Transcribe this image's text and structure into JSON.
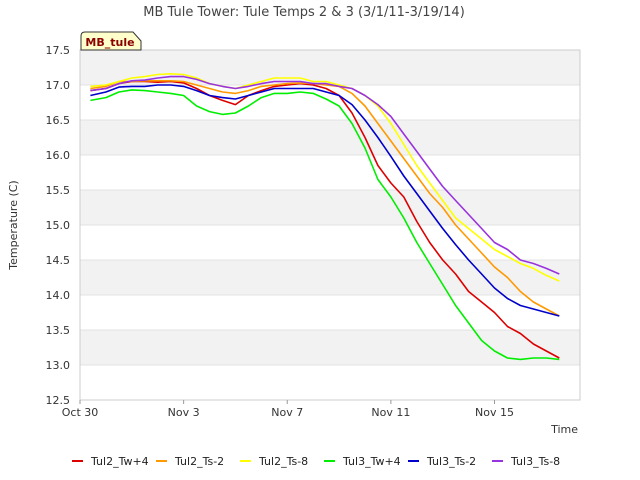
{
  "chart_data": {
    "type": "line",
    "title": "MB Tule Tower: Tule Temps 2 & 3 (3/1/11-3/19/14)",
    "xlabel": "Time",
    "ylabel": "Temperature (C)",
    "badge": "MB_tule",
    "xlim": [
      0,
      19.3
    ],
    "ylim": [
      12.5,
      17.5
    ],
    "x_ticks": [
      {
        "value": 0,
        "label": "Oct 30"
      },
      {
        "value": 4,
        "label": "Nov 3"
      },
      {
        "value": 8,
        "label": "Nov 7"
      },
      {
        "value": 12,
        "label": "Nov 11"
      },
      {
        "value": 16,
        "label": "Nov 15"
      }
    ],
    "y_ticks": [
      12.5,
      13.0,
      13.5,
      14.0,
      14.5,
      15.0,
      15.5,
      16.0,
      16.5,
      17.0,
      17.5
    ],
    "y_tick_labels": [
      "12.5",
      "13.0",
      "13.5",
      "14.0",
      "14.5",
      "15.0",
      "15.5",
      "16.0",
      "16.5",
      "17.0",
      "17.5"
    ],
    "legend_position": "bottom",
    "x": [
      0.4,
      1.0,
      1.5,
      2.0,
      2.5,
      3.0,
      3.5,
      4.0,
      4.5,
      5.0,
      5.5,
      6.0,
      6.5,
      7.0,
      7.5,
      8.0,
      8.5,
      9.0,
      9.5,
      10.0,
      10.5,
      11.0,
      11.5,
      12.0,
      12.5,
      13.0,
      13.5,
      14.0,
      14.5,
      15.0,
      15.5,
      16.0,
      16.5,
      17.0,
      17.5,
      18.0,
      18.5
    ],
    "series": [
      {
        "name": "Tul2_Tw+4",
        "color": "#dd0000",
        "values": [
          16.92,
          16.95,
          17.02,
          17.05,
          17.05,
          17.04,
          17.05,
          17.03,
          16.95,
          16.85,
          16.78,
          16.72,
          16.85,
          16.92,
          16.98,
          17.0,
          17.02,
          17.0,
          16.95,
          16.85,
          16.6,
          16.25,
          15.85,
          15.6,
          15.4,
          15.05,
          14.75,
          14.5,
          14.3,
          14.05,
          13.9,
          13.75,
          13.55,
          13.45,
          13.3,
          13.2,
          13.1
        ]
      },
      {
        "name": "Tul2_Ts-2",
        "color": "#ff9900",
        "values": [
          16.95,
          16.98,
          17.05,
          17.05,
          17.06,
          17.06,
          17.06,
          17.05,
          17.0,
          16.95,
          16.9,
          16.88,
          16.92,
          16.98,
          17.0,
          17.02,
          17.03,
          17.02,
          17.0,
          16.98,
          16.88,
          16.7,
          16.45,
          16.2,
          15.95,
          15.7,
          15.45,
          15.25,
          15.0,
          14.8,
          14.6,
          14.4,
          14.25,
          14.05,
          13.9,
          13.8,
          13.7
        ]
      },
      {
        "name": "Tul2_Ts-8",
        "color": "#ffff00",
        "values": [
          16.98,
          17.0,
          17.05,
          17.1,
          17.12,
          17.15,
          17.16,
          17.15,
          17.1,
          17.02,
          16.98,
          16.95,
          17.0,
          17.05,
          17.1,
          17.1,
          17.1,
          17.05,
          17.05,
          17.0,
          16.95,
          16.85,
          16.7,
          16.45,
          16.15,
          15.85,
          15.6,
          15.35,
          15.1,
          14.95,
          14.8,
          14.65,
          14.55,
          14.45,
          14.38,
          14.28,
          14.2
        ]
      },
      {
        "name": "Tul3_Tw+4",
        "color": "#00ee00",
        "values": [
          16.78,
          16.82,
          16.9,
          16.93,
          16.92,
          16.9,
          16.88,
          16.85,
          16.7,
          16.62,
          16.58,
          16.6,
          16.7,
          16.82,
          16.88,
          16.88,
          16.9,
          16.88,
          16.8,
          16.7,
          16.45,
          16.1,
          15.65,
          15.4,
          15.1,
          14.75,
          14.45,
          14.15,
          13.85,
          13.6,
          13.35,
          13.2,
          13.1,
          13.08,
          13.1,
          13.1,
          13.08
        ]
      },
      {
        "name": "Tul3_Ts-2",
        "color": "#0000cc",
        "values": [
          16.85,
          16.9,
          16.97,
          16.98,
          16.98,
          17.0,
          17.0,
          16.98,
          16.92,
          16.85,
          16.82,
          16.8,
          16.85,
          16.9,
          16.95,
          16.95,
          16.95,
          16.95,
          16.9,
          16.85,
          16.72,
          16.5,
          16.25,
          15.98,
          15.7,
          15.45,
          15.2,
          14.95,
          14.72,
          14.5,
          14.3,
          14.1,
          13.95,
          13.85,
          13.8,
          13.75,
          13.7
        ]
      },
      {
        "name": "Tul3_Ts-8",
        "color": "#9933dd",
        "values": [
          16.92,
          16.95,
          17.02,
          17.06,
          17.07,
          17.1,
          17.12,
          17.12,
          17.08,
          17.02,
          16.98,
          16.95,
          16.98,
          17.02,
          17.05,
          17.05,
          17.05,
          17.02,
          17.02,
          16.98,
          16.95,
          16.85,
          16.72,
          16.55,
          16.3,
          16.05,
          15.8,
          15.55,
          15.35,
          15.15,
          14.95,
          14.75,
          14.65,
          14.5,
          14.45,
          14.38,
          14.3
        ]
      }
    ]
  }
}
